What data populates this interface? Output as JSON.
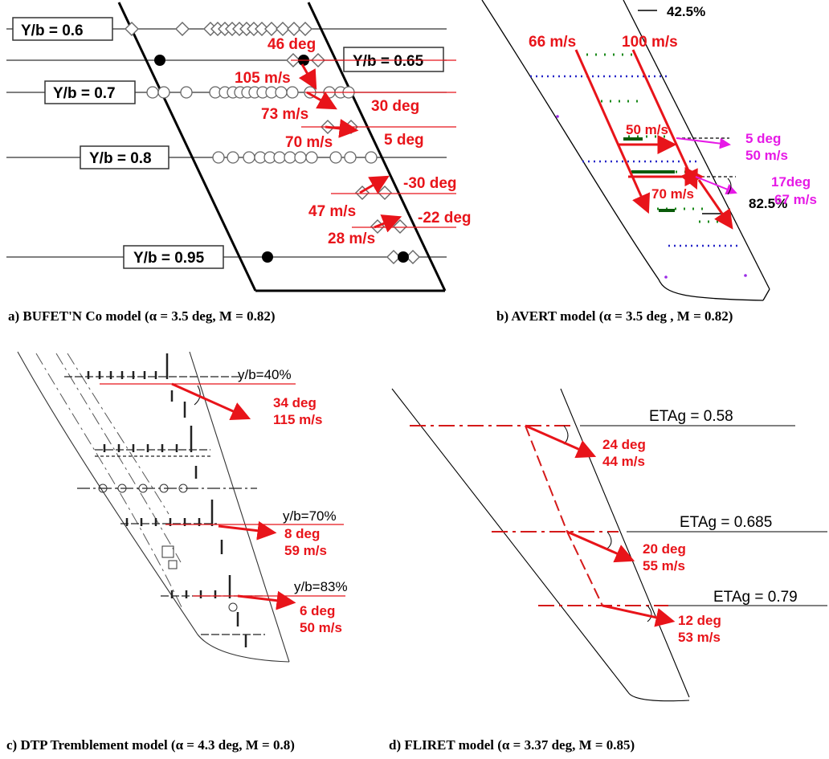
{
  "captions": {
    "a": "a) BUFET'N Co model (α = 3.5 deg, M = 0.82)",
    "b": "b) AVERT model (α = 3.5 deg , M = 0.82)",
    "c": "c) DTP Tremblement model (α = 4.3 deg, M = 0.8)",
    "d": "d) FLIRET model (α = 3.37 deg, M = 0.85)"
  },
  "panel_a": {
    "stations": [
      "Y/b = 0.6",
      "Y/b = 0.65",
      "Y/b = 0.7",
      "Y/b = 0.8",
      "Y/b = 0.95"
    ],
    "labels": [
      "46 deg",
      "105 m/s",
      "30 deg",
      "73 m/s",
      "5 deg",
      "70 m/s",
      "-30 deg",
      "47 m/s",
      "-22 deg",
      "28 m/s"
    ]
  },
  "panel_b": {
    "span_top": "42.5%",
    "span_bottom": "82.5%",
    "red_labels": [
      "66 m/s",
      "100 m/s",
      "50 m/s",
      "70 m/s"
    ],
    "magenta_labels": [
      "5 deg",
      "50 m/s",
      "17deg",
      "67 m/s"
    ]
  },
  "panel_c": {
    "stations": [
      "y/b=40%",
      "y/b=70%",
      "y/b=83%"
    ],
    "labels": [
      "34 deg",
      "115 m/s",
      "8 deg",
      "59 m/s",
      "6 deg",
      "50 m/s"
    ]
  },
  "panel_d": {
    "stations": [
      "ETAg = 0.58",
      "ETAg = 0.685",
      "ETAg = 0.79"
    ],
    "labels": [
      "24 deg",
      "44 m/s",
      "20 deg",
      "55 m/s",
      "12 deg",
      "53 m/s"
    ]
  }
}
